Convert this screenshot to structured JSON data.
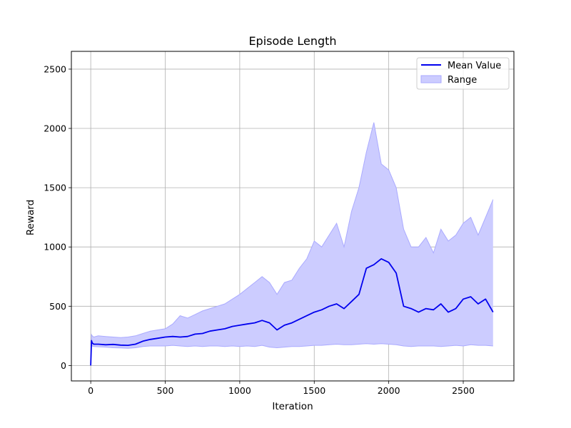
{
  "chart_data": {
    "type": "line",
    "title": "Episode Length",
    "xlabel": "Iteration",
    "ylabel": "Reward",
    "xlim": [
      -130,
      2840
    ],
    "ylim": [
      -130,
      2650
    ],
    "xticks": [
      0,
      500,
      1000,
      1500,
      2000,
      2500
    ],
    "yticks": [
      0,
      500,
      1000,
      1500,
      2000,
      2500
    ],
    "grid": true,
    "legend_position": "top-right",
    "colors": {
      "mean": "#0000ee",
      "range_fill": "#ccccff",
      "range_edge": "#aaaaff",
      "grid": "#b0b0b0"
    },
    "series": [
      {
        "name": "Mean Value",
        "kind": "line",
        "x": [
          0,
          5,
          10,
          20,
          50,
          100,
          150,
          200,
          250,
          300,
          350,
          400,
          450,
          500,
          550,
          600,
          650,
          700,
          750,
          800,
          850,
          900,
          950,
          1000,
          1050,
          1100,
          1150,
          1200,
          1250,
          1300,
          1350,
          1400,
          1450,
          1500,
          1550,
          1600,
          1650,
          1700,
          1750,
          1800,
          1850,
          1900,
          1950,
          2000,
          2050,
          2100,
          2150,
          2200,
          2250,
          2300,
          2350,
          2400,
          2450,
          2500,
          2550,
          2600,
          2650,
          2700
        ],
        "y": [
          0,
          210,
          190,
          180,
          180,
          175,
          178,
          172,
          170,
          180,
          205,
          220,
          230,
          240,
          245,
          240,
          245,
          265,
          270,
          290,
          300,
          310,
          330,
          340,
          350,
          360,
          380,
          360,
          300,
          340,
          360,
          390,
          420,
          450,
          470,
          500,
          520,
          480,
          540,
          600,
          820,
          850,
          900,
          870,
          780,
          500,
          480,
          450,
          480,
          470,
          520,
          450,
          480,
          560,
          580,
          520,
          560,
          450
        ]
      },
      {
        "name": "Range",
        "kind": "band",
        "x": [
          0,
          5,
          10,
          20,
          50,
          100,
          150,
          200,
          250,
          300,
          350,
          400,
          450,
          500,
          550,
          600,
          650,
          700,
          750,
          800,
          850,
          900,
          950,
          1000,
          1050,
          1100,
          1150,
          1200,
          1250,
          1300,
          1350,
          1400,
          1450,
          1500,
          1550,
          1600,
          1650,
          1700,
          1750,
          1800,
          1850,
          1900,
          1950,
          2000,
          2050,
          2100,
          2150,
          2200,
          2250,
          2300,
          2350,
          2400,
          2450,
          2500,
          2550,
          2600,
          2650,
          2700
        ],
        "lower": [
          0,
          180,
          165,
          160,
          158,
          155,
          150,
          148,
          145,
          150,
          160,
          165,
          165,
          165,
          170,
          165,
          160,
          165,
          160,
          165,
          165,
          160,
          165,
          160,
          165,
          160,
          170,
          155,
          150,
          155,
          160,
          160,
          165,
          170,
          170,
          175,
          180,
          175,
          175,
          180,
          185,
          180,
          185,
          180,
          175,
          165,
          160,
          165,
          165,
          165,
          160,
          165,
          170,
          165,
          175,
          170,
          170,
          165
        ],
        "upper": [
          0,
          260,
          250,
          240,
          250,
          245,
          240,
          235,
          240,
          250,
          270,
          290,
          300,
          310,
          350,
          420,
          400,
          430,
          460,
          480,
          500,
          520,
          560,
          600,
          650,
          700,
          750,
          700,
          600,
          700,
          720,
          820,
          900,
          1050,
          1000,
          1100,
          1200,
          1000,
          1300,
          1500,
          1800,
          2050,
          1700,
          1650,
          1500,
          1150,
          1000,
          1000,
          1080,
          950,
          1150,
          1050,
          1100,
          1200,
          1250,
          1100,
          1250,
          1400
        ]
      }
    ]
  }
}
